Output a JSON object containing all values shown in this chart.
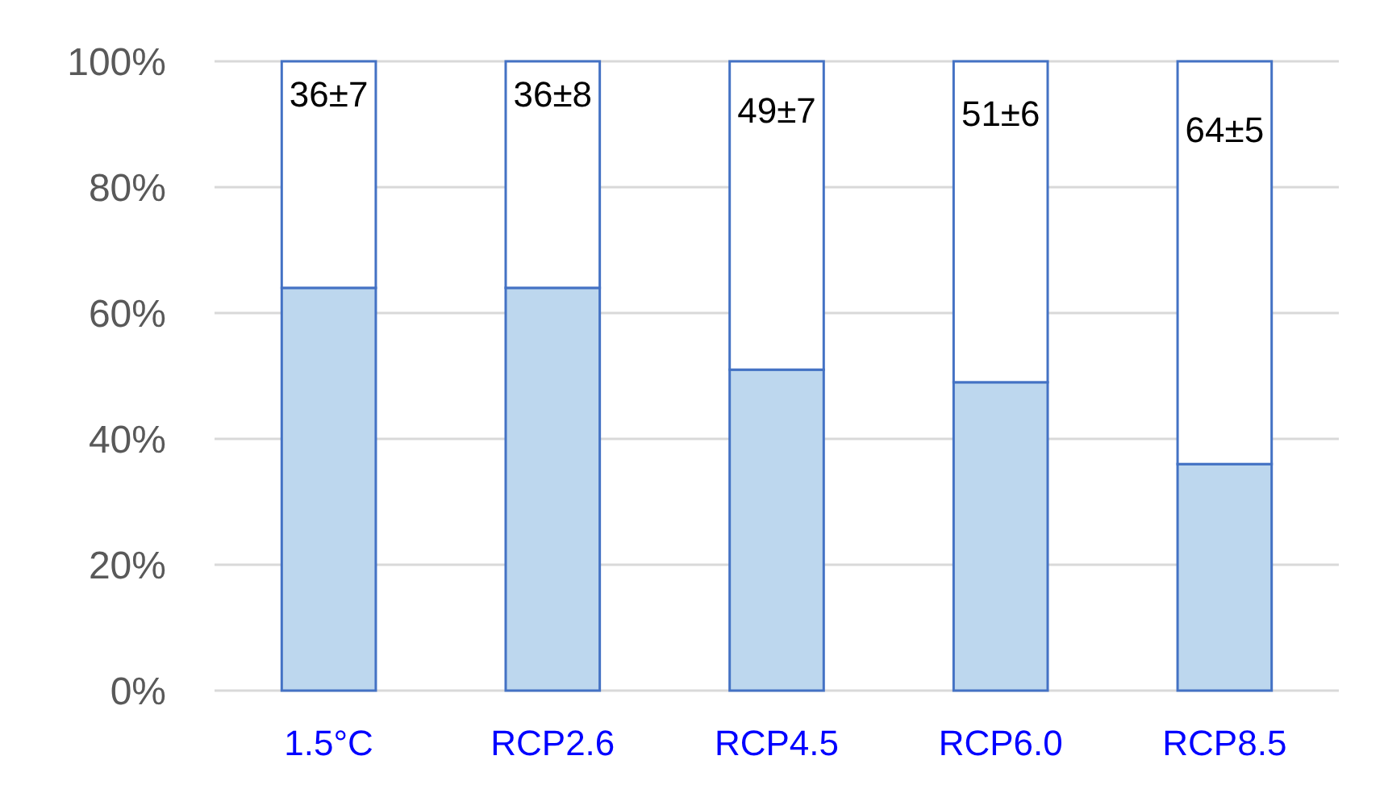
{
  "chart_data": {
    "type": "bar",
    "stacked": true,
    "categories": [
      "1.5°C",
      "RCP2.6",
      "RCP4.5",
      "RCP6.0",
      "RCP8.5"
    ],
    "series": [
      {
        "color": "#bdd7ee",
        "values": [
          64,
          64,
          51,
          49,
          36
        ]
      },
      {
        "color": "#ffffff",
        "values": [
          36,
          36,
          49,
          51,
          64
        ],
        "value_labels": [
          "36±7",
          "36±8",
          "49±7",
          "51±6",
          "64±5"
        ]
      }
    ],
    "ylim": [
      0,
      100
    ],
    "yticks": [
      {
        "value": 0,
        "label": "0%"
      },
      {
        "value": 20,
        "label": "20%"
      },
      {
        "value": 40,
        "label": "40%"
      },
      {
        "value": 60,
        "label": "60%"
      },
      {
        "value": 80,
        "label": "80%"
      },
      {
        "value": 100,
        "label": "100%"
      }
    ],
    "grid": "y"
  }
}
